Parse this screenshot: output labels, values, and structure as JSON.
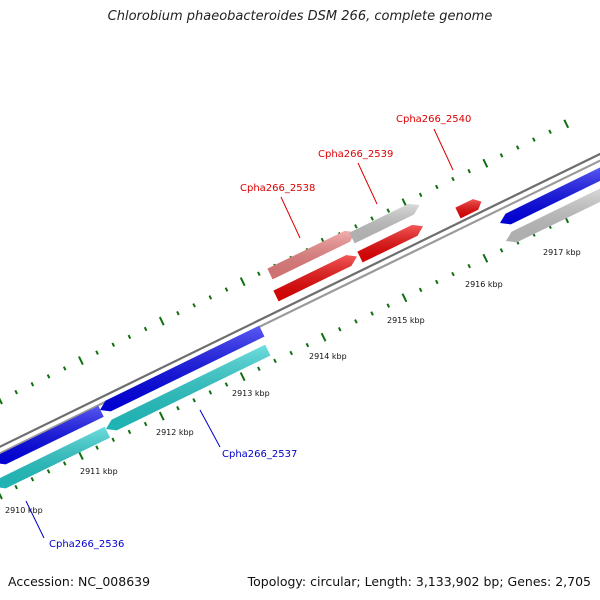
{
  "title": "Chlorobium phaeobacteroides DSM 266, complete genome",
  "footer": {
    "accession": "Accession: NC_008639",
    "summary": "Topology: circular; Length: 3,133,902 bp; Genes: 2,705"
  },
  "scale": {
    "unit": "kbp",
    "tick_labels": [
      "2910 kbp",
      "2911 kbp",
      "2912 kbp",
      "2913 kbp",
      "2914 kbp",
      "2915 kbp",
      "2916 kbp",
      "2917 kbp"
    ]
  },
  "genes": [
    {
      "id": "Cpha266_2536",
      "strand": "reverse",
      "label_color": "#0000cc"
    },
    {
      "id": "Cpha266_2537",
      "strand": "reverse",
      "label_color": "#0000cc"
    },
    {
      "id": "Cpha266_2538",
      "strand": "forward",
      "label_color": "#dd0000"
    },
    {
      "id": "Cpha266_2539",
      "strand": "forward",
      "label_color": "#dd0000"
    },
    {
      "id": "Cpha266_2540",
      "strand": "forward",
      "label_color": "#dd0000"
    }
  ],
  "colors": {
    "backbone": "#808080",
    "forward_cds": "#ee0000",
    "forward_cds_light": "#ee8080",
    "reverse_cds": "#0000ee",
    "reverse_cds_light": "#22cccc",
    "untranslated": "#c8c8c8",
    "ticks": "#107010"
  }
}
